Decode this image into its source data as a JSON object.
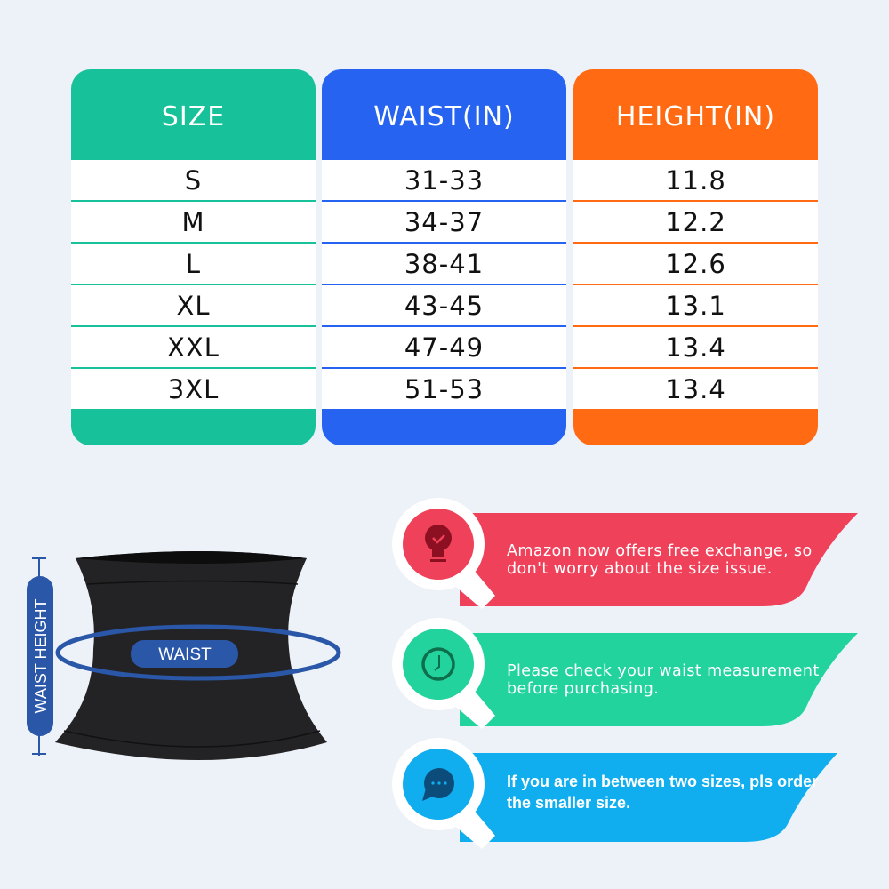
{
  "table": {
    "headers": [
      "SIZE",
      "WAIST(IN)",
      "HEIGHT(IN)"
    ],
    "header_colors": [
      "#17c19a",
      "#2563f0",
      "#ff6a12"
    ],
    "rows": [
      [
        "S",
        "31-33",
        "11.8"
      ],
      [
        "M",
        "34-37",
        "12.2"
      ],
      [
        "L",
        "38-41",
        "12.6"
      ],
      [
        "XL",
        "43-45",
        "13.1"
      ],
      [
        "XXL",
        "47-49",
        "13.4"
      ],
      [
        "3XL",
        "51-53",
        "13.4"
      ]
    ]
  },
  "diagram": {
    "waist_label": "WAIST",
    "height_label": "WAIST HEIGHT",
    "accent": "#2a57a8"
  },
  "tips": [
    {
      "text": "Amazon now offers free exchange, so don't worry about the size issue.",
      "icon": "lightbulb-check-icon",
      "color": "#f0415a"
    },
    {
      "text": "Please check your waist measurement before purchasing.",
      "icon": "clock-icon",
      "color": "#22d39e"
    },
    {
      "text": "If you are in between two sizes, pls order the smaller size.",
      "icon": "chat-bubble-icon",
      "color": "#10aeee"
    }
  ]
}
